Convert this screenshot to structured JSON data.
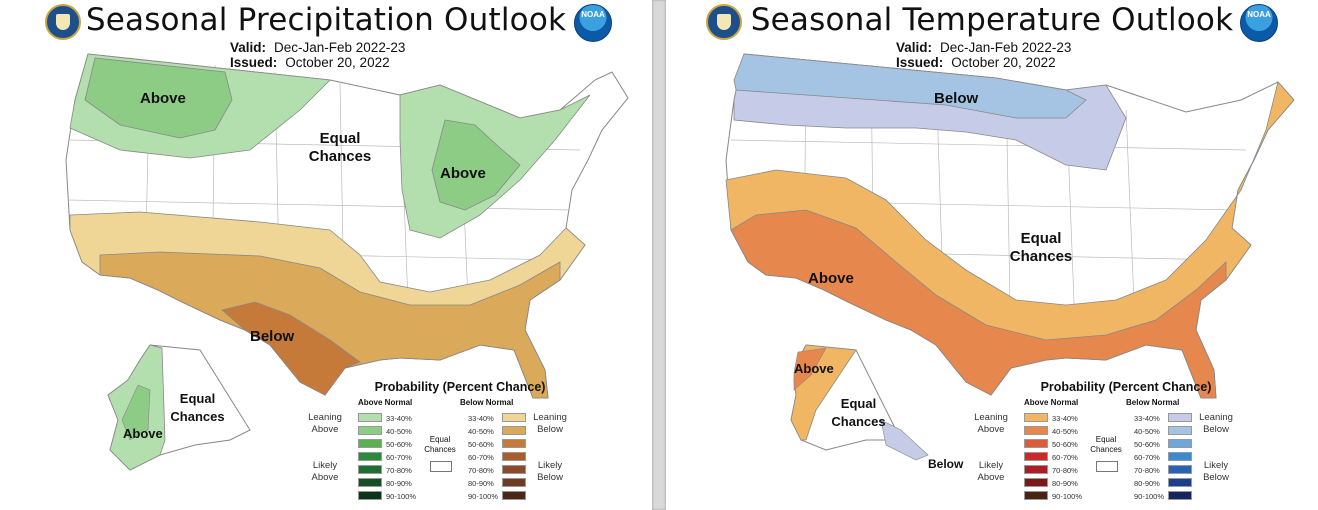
{
  "colors": {
    "precip_above_33": "#b3dfae",
    "precip_above_40": "#8ccc84",
    "precip_above_50": "#5ab04f",
    "precip_above_60": "#2e8a3b",
    "precip_above_70": "#1e6e33",
    "precip_above_80": "#154f26",
    "precip_above_90": "#0c3418",
    "precip_below_33": "#efd596",
    "precip_below_40": "#dba95a",
    "precip_below_50": "#c67a3a",
    "precip_below_60": "#a85d2c",
    "precip_below_70": "#8d4a28",
    "precip_below_80": "#6d3a22",
    "precip_below_90": "#4a2716",
    "temp_above_33": "#f0b664",
    "temp_above_40": "#e6874e",
    "temp_above_50": "#df5a36",
    "temp_above_60": "#cc2a2a",
    "temp_above_70": "#b01c24",
    "temp_above_80": "#7a1a16",
    "temp_above_90": "#4a2412",
    "temp_below_33": "#c6cce8",
    "temp_below_40": "#a5c3e2",
    "temp_below_50": "#6da8dc",
    "temp_below_60": "#3a8ad1",
    "temp_below_70": "#2663b3",
    "temp_below_80": "#1a3f8c",
    "temp_below_90": "#14245e"
  },
  "precip": {
    "title": "Seasonal Precipitation Outlook",
    "valid_label": "Valid:",
    "valid_value": "Dec-Jan-Feb 2022-23",
    "issued_label": "Issued:",
    "issued_value": "October 20, 2022",
    "map_labels": {
      "above_nw": "Above",
      "equal": "Equal Chances",
      "above_gl": "Above",
      "below": "Below",
      "alaska_equal": "Equal Chances",
      "alaska_above": "Above"
    }
  },
  "temp": {
    "title": "Seasonal Temperature Outlook",
    "valid_label": "Valid:",
    "valid_value": "Dec-Jan-Feb 2022-23",
    "issued_label": "Issued:",
    "issued_value": "October 20, 2022",
    "map_labels": {
      "below_n": "Below",
      "equal": "Equal Chances",
      "above_sw": "Above",
      "alaska_above": "Above",
      "alaska_equal": "Equal Chances",
      "alaska_below": "Below"
    }
  },
  "legend": {
    "title": "Probability (Percent Chance)",
    "above_head": "Above Normal",
    "below_head": "Below Normal",
    "ranges": [
      "33-40%",
      "40-50%",
      "50-60%",
      "60-70%",
      "70-80%",
      "80-90%",
      "90-100%"
    ],
    "leaning_above": "Leaning Above",
    "likely_above": "Likely Above",
    "leaning_below": "Leaning Below",
    "likely_below": "Likely Below",
    "equal_chances": "Equal Chances"
  },
  "logos": {
    "commerce_seal": "commerce-seal-icon",
    "noaa": "NOAA"
  }
}
